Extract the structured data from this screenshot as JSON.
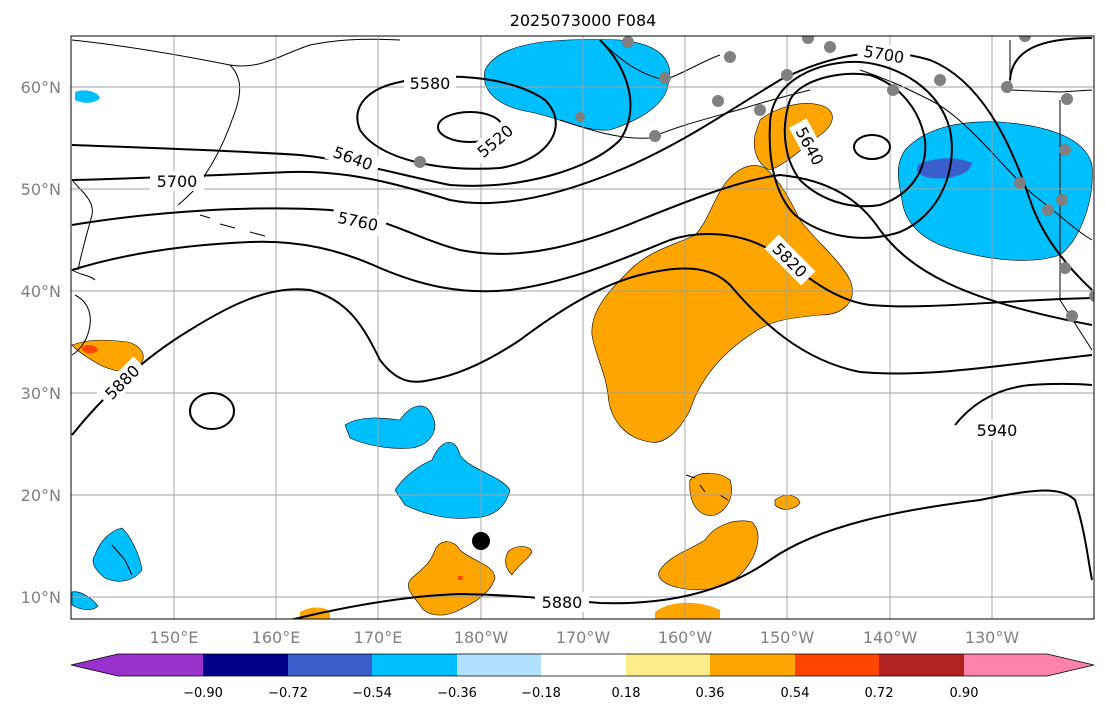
{
  "title": "2025073000 F084",
  "lat_labels": [
    "60°N",
    "50°N",
    "40°N",
    "30°N",
    "20°N",
    "10°N"
  ],
  "lon_labels": [
    "150°E",
    "160°E",
    "170°E",
    "180°W",
    "170°W",
    "160°W",
    "150°W",
    "140°W",
    "130°W"
  ],
  "contour_labels": [
    "5580",
    "5520",
    "5640",
    "5700",
    "5760",
    "5820",
    "5640",
    "5700",
    "5880",
    "5940",
    "5880"
  ],
  "colorbar": {
    "ticks": [
      "−0.90",
      "−0.72",
      "−0.54",
      "−0.36",
      "−0.18",
      "0.18",
      "0.36",
      "0.54",
      "0.72",
      "0.90"
    ],
    "colors": [
      "#9932cc",
      "#00008b",
      "#3a5fcd",
      "#00bfff",
      "#b0e2ff",
      "#ffffff",
      "#ffec8b",
      "#ffa500",
      "#ff4500",
      "#b22222",
      "#ff82ab"
    ]
  },
  "fill_colors": {
    "negative": "#00bfff",
    "negative_strong": "#3a5fcd",
    "positive": "#ffa500",
    "positive_strong": "#ff4500"
  },
  "markers": {
    "station_color": "#808080",
    "storm_center_color": "#000000"
  }
}
